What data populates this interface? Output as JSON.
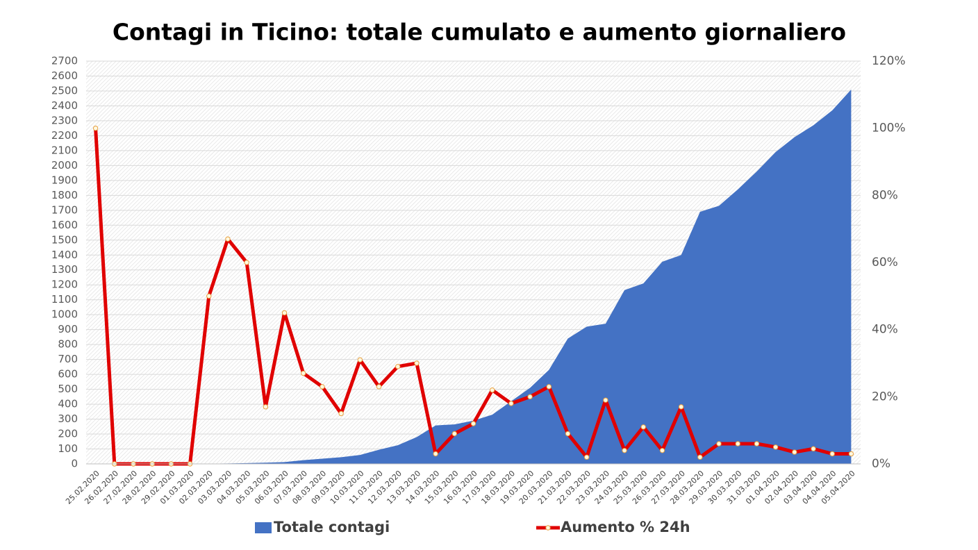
{
  "chart_data": {
    "type": "area-line",
    "title": "Contagi in Ticino: totale cumulato e aumento giornaliero",
    "categories": [
      "25.02.2020",
      "26.02.2020",
      "27.02.2020",
      "28.02.2020",
      "29.02.2020",
      "01.03.2020",
      "02.03.2020",
      "03.03.2020",
      "04.03.2020",
      "05.03.2020",
      "06.03.2020",
      "07.03.2020",
      "08.03.2020",
      "09.03.2020",
      "10.03.2020",
      "11.03.2020",
      "12.03.2020",
      "13.03.2020",
      "14.03.2020",
      "15.03.2020",
      "16.03.2020",
      "17.03.2020",
      "18.03.2020",
      "19.03.2020",
      "20.03.2020",
      "21.03.2020",
      "22.03.2020",
      "23.03.2020",
      "24.03.2020",
      "25.03.2020",
      "26.03.2020",
      "27.03.2020",
      "28.03.2020",
      "29.03.2020",
      "30.03.2020",
      "31.03.2020",
      "01.04.2020",
      "02.04.2020",
      "03.04.2020",
      "04.04.2020",
      "05.04.2020"
    ],
    "series": [
      {
        "name": "Totale contagi",
        "type": "area",
        "color": "#4472c4",
        "values": [
          1,
          1,
          1,
          1,
          1,
          1,
          2,
          3,
          5,
          8,
          12,
          25,
          35,
          45,
          60,
          95,
          125,
          180,
          258,
          265,
          290,
          330,
          420,
          510,
          630,
          840,
          920,
          940,
          1165,
          1210,
          1355,
          1400,
          1690,
          1730,
          1840,
          1960,
          2090,
          2190,
          2270,
          2370,
          2510
        ]
      },
      {
        "name": "Aumento % 24h",
        "type": "line",
        "axis": "y2",
        "color": "#e00000",
        "values": [
          100,
          0,
          0,
          0,
          0,
          0,
          50,
          67,
          60,
          17,
          45,
          27,
          23,
          15,
          31,
          23,
          29,
          30,
          3,
          9,
          12,
          22,
          18,
          20,
          23,
          9,
          2,
          19,
          4,
          11,
          4,
          17,
          2,
          6,
          6,
          6,
          5,
          3.5,
          4.5,
          3,
          3
        ]
      }
    ],
    "ylim": [
      0,
      2700
    ],
    "yticks": [
      0,
      100,
      200,
      300,
      400,
      500,
      600,
      700,
      800,
      900,
      1000,
      1100,
      1200,
      1300,
      1400,
      1500,
      1600,
      1700,
      1800,
      1900,
      2000,
      2100,
      2200,
      2300,
      2400,
      2500,
      2600,
      2700
    ],
    "y2lim": [
      0,
      120
    ],
    "y2ticks": [
      {
        "value": 0,
        "label": "0%"
      },
      {
        "value": 20,
        "label": "20%"
      },
      {
        "value": 40,
        "label": "40%"
      },
      {
        "value": 60,
        "label": "60%"
      },
      {
        "value": 80,
        "label": "80%"
      },
      {
        "value": 100,
        "label": "100%"
      },
      {
        "value": 120,
        "label": "120%"
      }
    ],
    "grid": true,
    "legend": "bottom"
  }
}
